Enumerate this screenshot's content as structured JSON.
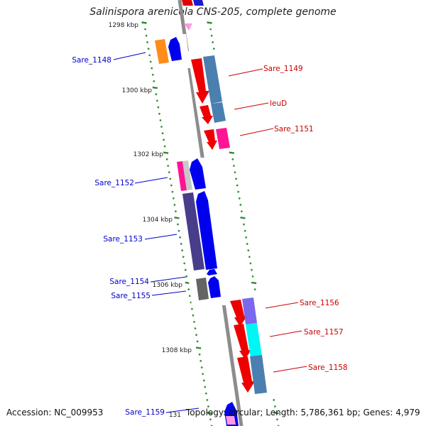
{
  "title": "Salinispora arenicola CNS-205, complete genome",
  "accession_text": "Accession: NC_009953",
  "info_text": "Topology: circular; Length: 5,786,361 bp; Genes: 4,979",
  "scale_labels": [
    "1298 kbp",
    "1300 kbp",
    "1302 kbp",
    "1304 kbp",
    "1306 kbp",
    "1308 kbp",
    "131"
  ],
  "colors": {
    "backbone": "#8c8c8c",
    "tick": "#2e8b2e",
    "label_forward": "#0000cc",
    "label_reverse": "#cc0000"
  },
  "gene_labels": [
    {
      "text": "Sare_1148",
      "strand": "forward"
    },
    {
      "text": "Sare_1149",
      "strand": "reverse"
    },
    {
      "text": "leuD",
      "strand": "reverse"
    },
    {
      "text": "Sare_1151",
      "strand": "reverse"
    },
    {
      "text": "Sare_1152",
      "strand": "forward"
    },
    {
      "text": "Sare_1153",
      "strand": "forward"
    },
    {
      "text": "Sare_1154",
      "strand": "forward"
    },
    {
      "text": "Sare_1155",
      "strand": "forward"
    },
    {
      "text": "Sare_1156",
      "strand": "reverse"
    },
    {
      "text": "Sare_1157",
      "strand": "reverse"
    },
    {
      "text": "Sare_1158",
      "strand": "reverse"
    },
    {
      "text": "Sare_1159",
      "strand": "forward"
    }
  ]
}
